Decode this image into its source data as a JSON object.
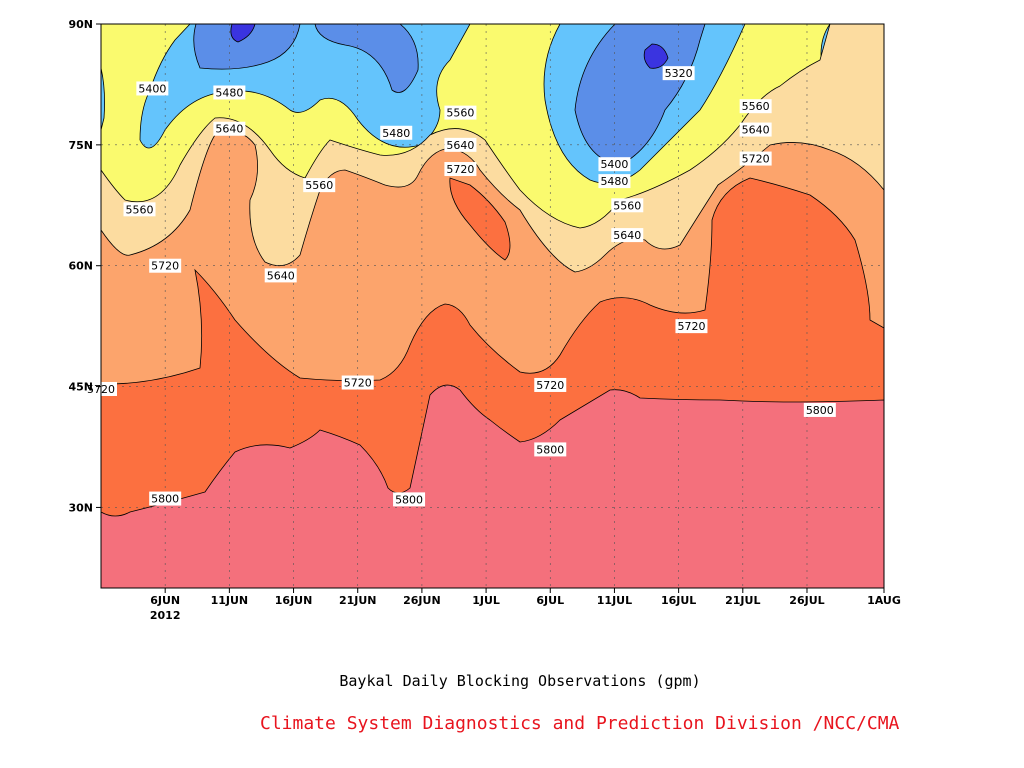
{
  "chart_data": {
    "type": "heatmap",
    "title": "Baykal Daily Blocking Observations (gpm)",
    "credit": "Climate System Diagnostics and Prediction Division /NCC/CMA",
    "x_ticks": [
      "6JUN",
      "11JUN",
      "16JUN",
      "21JUN",
      "26JUN",
      "1JUL",
      "6JUL",
      "11JUL",
      "16JUL",
      "21JUL",
      "26JUL",
      "1AUG"
    ],
    "x_year_label": "2012",
    "x_range": [
      "2012-06-01",
      "2012-08-01"
    ],
    "y_ticks": [
      "30N",
      "45N",
      "60N",
      "75N",
      "90N"
    ],
    "y_range": [
      20,
      90
    ],
    "contour_levels": [
      5320,
      5400,
      5480,
      5560,
      5640,
      5720,
      5800
    ],
    "fill_colors": {
      "below_5320": "#3a34e0",
      "5320_5400": "#5b8ee8",
      "5400_5480": "#64c4fc",
      "5480_5560": "#fafa6e",
      "5560_5640": "#fcdca0",
      "5640_5720": "#fca46c",
      "5720_5800": "#fc7040",
      "above_5800": "#f4707c"
    },
    "contour_labels": [
      {
        "date": "2012-06-05",
        "lat": 82,
        "text": "5400"
      },
      {
        "date": "2012-06-11",
        "lat": 81.5,
        "text": "5480"
      },
      {
        "date": "2012-06-11",
        "lat": 77,
        "text": "5640"
      },
      {
        "date": "2012-06-04",
        "lat": 67,
        "text": "5560"
      },
      {
        "date": "2012-06-18",
        "lat": 70,
        "text": "5560"
      },
      {
        "date": "2012-06-06",
        "lat": 60,
        "text": "5720"
      },
      {
        "date": "2012-06-15",
        "lat": 58.8,
        "text": "5640"
      },
      {
        "date": "2012-06-24",
        "lat": 76.5,
        "text": "5480"
      },
      {
        "date": "2012-06-29",
        "lat": 79,
        "text": "5560"
      },
      {
        "date": "2012-06-29",
        "lat": 75,
        "text": "5640"
      },
      {
        "date": "2012-06-29",
        "lat": 72,
        "text": "5720"
      },
      {
        "date": "2012-06-21",
        "lat": 45.5,
        "text": "5720"
      },
      {
        "date": "2012-06-01",
        "lat": 44.7,
        "text": "5720"
      },
      {
        "date": "2012-06-06",
        "lat": 31.1,
        "text": "5800"
      },
      {
        "date": "2012-06-25",
        "lat": 31,
        "text": "5800"
      },
      {
        "date": "2012-07-06",
        "lat": 45.2,
        "text": "5720"
      },
      {
        "date": "2012-07-06",
        "lat": 37.2,
        "text": "5800"
      },
      {
        "date": "2012-07-11",
        "lat": 72.6,
        "text": "5400"
      },
      {
        "date": "2012-07-11",
        "lat": 70.5,
        "text": "5480"
      },
      {
        "date": "2012-07-12",
        "lat": 67.5,
        "text": "5560"
      },
      {
        "date": "2012-07-12",
        "lat": 63.8,
        "text": "5640"
      },
      {
        "date": "2012-07-16",
        "lat": 83.9,
        "text": "5320"
      },
      {
        "date": "2012-07-17",
        "lat": 52.5,
        "text": "5720"
      },
      {
        "date": "2012-07-22",
        "lat": 79.8,
        "text": "5560"
      },
      {
        "date": "2012-07-22",
        "lat": 76.9,
        "text": "5640"
      },
      {
        "date": "2012-07-22",
        "lat": 73.3,
        "text": "5720"
      },
      {
        "date": "2012-07-27",
        "lat": 42.1,
        "text": "5800"
      }
    ]
  }
}
